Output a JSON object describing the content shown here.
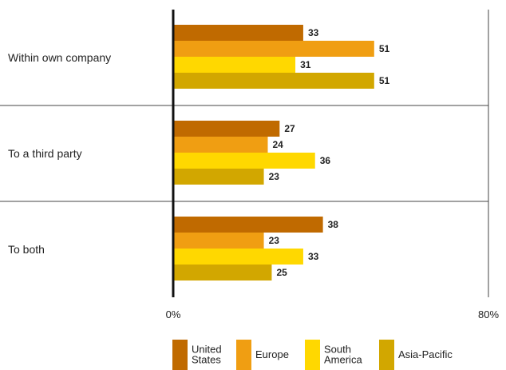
{
  "chart_data": {
    "type": "bar",
    "orientation": "horizontal",
    "categories": [
      "Within own company",
      "To a third party",
      "To both"
    ],
    "series": [
      {
        "name": "United States",
        "values": [
          33,
          27,
          38
        ],
        "color": "#C06A00"
      },
      {
        "name": "Europe",
        "values": [
          51,
          24,
          23
        ],
        "color": "#F09E12"
      },
      {
        "name": "South America",
        "values": [
          31,
          36,
          33
        ],
        "color": "#FFD800"
      },
      {
        "name": "Asia-Pacific",
        "values": [
          51,
          23,
          25
        ],
        "color": "#D2A700"
      }
    ],
    "xlim": [
      0,
      80
    ],
    "x_tick_labels": [
      "0%",
      "80%"
    ],
    "legend_labels": [
      [
        "United",
        "States"
      ],
      [
        "Europe"
      ],
      [
        "South",
        "America"
      ],
      [
        "Asia-Pacific"
      ]
    ],
    "legend_position": "bottom",
    "grid": false
  }
}
